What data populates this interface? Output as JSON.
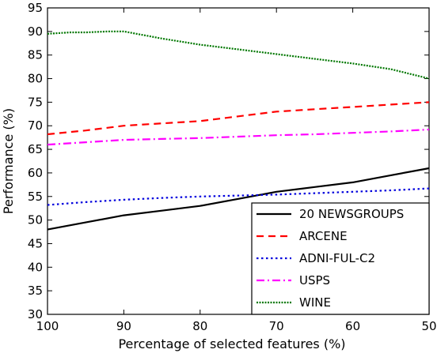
{
  "chart_data": {
    "type": "line",
    "title": "",
    "xlabel": "Percentage of selected features (%)",
    "ylabel": "Performance (%)",
    "x_reversed": true,
    "xlim": [
      100,
      50
    ],
    "ylim": [
      30,
      95
    ],
    "xticks": [
      100,
      90,
      80,
      70,
      60,
      50
    ],
    "yticks": [
      30,
      35,
      40,
      45,
      50,
      55,
      60,
      65,
      70,
      75,
      80,
      85,
      90,
      95
    ],
    "grid": false,
    "legend_position": "bottom-right",
    "series": [
      {
        "name": "20 NEWSGROUPS",
        "color": "#000000",
        "dash": "solid",
        "x": [
          100,
          95,
          90,
          85,
          80,
          75,
          70,
          65,
          60,
          55,
          50
        ],
        "y": [
          48,
          49.5,
          51,
          52,
          53,
          54.5,
          56,
          57,
          58,
          59.5,
          61
        ]
      },
      {
        "name": "ARCENE",
        "color": "#ff0000",
        "dash": "dashed",
        "x": [
          100,
          95,
          90,
          85,
          80,
          75,
          70,
          65,
          60,
          55,
          50
        ],
        "y": [
          68.2,
          69,
          70,
          70.5,
          71,
          72,
          73,
          73.5,
          74,
          74.5,
          75
        ]
      },
      {
        "name": "ADNI-FUL-C2",
        "color": "#0000dd",
        "dash": "dotted",
        "x": [
          100,
          95,
          90,
          85,
          80,
          75,
          70,
          65,
          60,
          55,
          50
        ],
        "y": [
          53.2,
          53.8,
          54.3,
          54.7,
          55,
          55.2,
          55.4,
          55.7,
          56,
          56.3,
          56.7
        ]
      },
      {
        "name": "USPS",
        "color": "#ff00ff",
        "dash": "dashdot",
        "x": [
          100,
          95,
          90,
          85,
          80,
          75,
          70,
          65,
          60,
          55,
          50
        ],
        "y": [
          66,
          66.5,
          67,
          67.2,
          67.4,
          67.7,
          68,
          68.2,
          68.5,
          68.8,
          69.2
        ]
      },
      {
        "name": "WINE",
        "color": "#007700",
        "dash": "densedot",
        "x": [
          100,
          97,
          95,
          92,
          90,
          85,
          80,
          75,
          70,
          65,
          60,
          55,
          50
        ],
        "y": [
          89.5,
          89.8,
          89.8,
          90,
          90,
          88.5,
          87.2,
          86.2,
          85.2,
          84.2,
          83.2,
          82,
          80
        ]
      }
    ]
  }
}
